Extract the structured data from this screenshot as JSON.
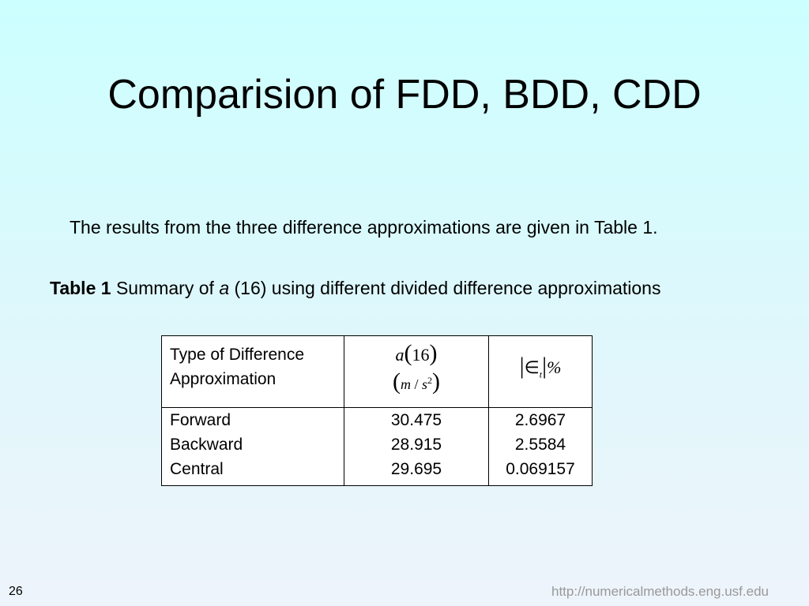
{
  "slide": {
    "title": "Comparision of FDD, BDD, CDD",
    "intro": "The results from the three difference approximations are given in Table 1.",
    "caption": {
      "label": "Table 1",
      "prefix": "Summary of",
      "variable": "a",
      "suffix": "(16) using different divided difference approximations"
    },
    "table": {
      "headers": {
        "type_line1": "Type of Difference",
        "type_line2": "Approximation",
        "a_var": "a",
        "a_arg": "16",
        "unit_m": "m",
        "unit_slash": "/",
        "unit_s": "s",
        "unit_exp": "2",
        "err_symbol": "∈",
        "err_sub": "t",
        "err_pct": "%"
      },
      "rows": [
        {
          "type": "Forward",
          "value": "30.475",
          "error": "2.6967"
        },
        {
          "type": "Backward",
          "value": "28.915",
          "error": "2.5584"
        },
        {
          "type": "Central",
          "value": "29.695",
          "error": "0.069157"
        }
      ]
    },
    "page_number": "26",
    "footer_url": "http://numericalmethods.eng.usf.edu"
  }
}
